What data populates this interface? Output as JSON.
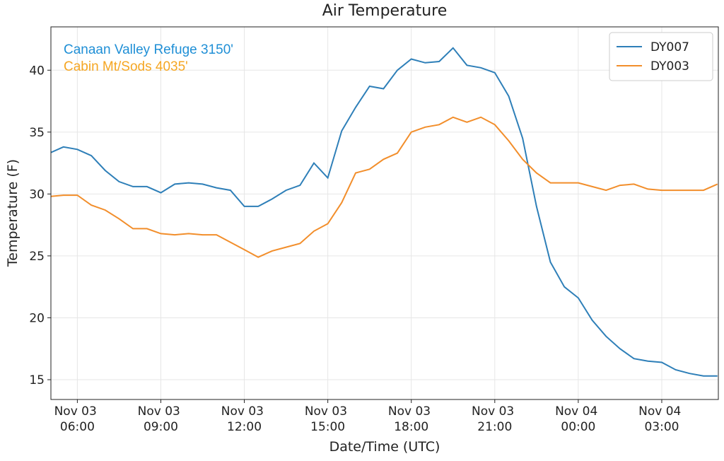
{
  "chart_data": {
    "type": "line",
    "title": "Air Temperature",
    "x_label": "Date/Time (UTC)",
    "y_label": "Temperature (F)",
    "annotations": [
      {
        "text": "Canaan Valley Refuge 3150'",
        "color": "#1f8fd6"
      },
      {
        "text": "Cabin Mt/Sods 4035'",
        "color": "#f5a623"
      }
    ],
    "x": [
      "Nov 03 05:00",
      "Nov 03 05:30",
      "Nov 03 06:00",
      "Nov 03 06:30",
      "Nov 03 07:00",
      "Nov 03 07:30",
      "Nov 03 08:00",
      "Nov 03 08:30",
      "Nov 03 09:00",
      "Nov 03 09:30",
      "Nov 03 10:00",
      "Nov 03 10:30",
      "Nov 03 11:00",
      "Nov 03 11:30",
      "Nov 03 12:00",
      "Nov 03 12:30",
      "Nov 03 13:00",
      "Nov 03 13:30",
      "Nov 03 14:00",
      "Nov 03 14:30",
      "Nov 03 15:00",
      "Nov 03 15:30",
      "Nov 03 16:00",
      "Nov 03 16:30",
      "Nov 03 17:00",
      "Nov 03 17:30",
      "Nov 03 18:00",
      "Nov 03 18:30",
      "Nov 03 19:00",
      "Nov 03 19:30",
      "Nov 03 20:00",
      "Nov 03 20:30",
      "Nov 03 21:00",
      "Nov 03 21:30",
      "Nov 03 22:00",
      "Nov 03 22:30",
      "Nov 03 23:00",
      "Nov 03 23:30",
      "Nov 04 00:00",
      "Nov 04 00:30",
      "Nov 04 01:00",
      "Nov 04 01:30",
      "Nov 04 02:00",
      "Nov 04 02:30",
      "Nov 04 03:00",
      "Nov 04 03:30",
      "Nov 04 04:00",
      "Nov 04 04:30",
      "Nov 04 05:00"
    ],
    "series": [
      {
        "name": "DY007",
        "color": "#2e7fb8",
        "values": [
          33.3,
          33.8,
          33.6,
          33.1,
          31.9,
          31.0,
          30.6,
          30.6,
          30.1,
          30.8,
          30.9,
          30.8,
          30.5,
          30.3,
          29.0,
          29.0,
          29.6,
          30.3,
          30.7,
          32.5,
          31.3,
          35.1,
          37.0,
          38.7,
          38.5,
          40.0,
          40.9,
          40.6,
          40.7,
          41.8,
          40.4,
          40.2,
          39.8,
          37.9,
          34.5,
          29.0,
          24.5,
          22.5,
          21.6,
          19.8,
          18.5,
          17.5,
          16.7,
          16.5,
          16.4,
          15.8,
          15.5,
          15.3,
          15.3
        ]
      },
      {
        "name": "DY003",
        "color": "#f28e2b",
        "values": [
          29.8,
          29.9,
          29.9,
          29.1,
          28.7,
          28.0,
          27.2,
          27.2,
          26.8,
          26.7,
          26.8,
          26.7,
          26.7,
          26.1,
          25.5,
          24.9,
          25.4,
          25.7,
          26.0,
          27.0,
          27.6,
          29.3,
          31.7,
          32.0,
          32.8,
          33.3,
          35.0,
          35.4,
          35.6,
          36.2,
          35.8,
          36.2,
          35.6,
          34.3,
          32.8,
          31.7,
          30.9,
          30.9,
          30.9,
          30.6,
          30.3,
          30.7,
          30.8,
          30.4,
          30.3,
          30.3,
          30.3,
          30.3,
          30.8
        ]
      }
    ],
    "xlim": [
      "Nov 03 05:03",
      "Nov 04 05:02"
    ],
    "xticks": [
      "Nov 03 06:00",
      "Nov 03 09:00",
      "Nov 03 12:00",
      "Nov 03 15:00",
      "Nov 03 18:00",
      "Nov 03 21:00",
      "Nov 04 00:00",
      "Nov 04 03:00"
    ],
    "ylim": [
      13.4,
      43.5
    ],
    "yticks": [
      15,
      20,
      25,
      30,
      35,
      40
    ],
    "grid": true,
    "legend": "upper right"
  }
}
